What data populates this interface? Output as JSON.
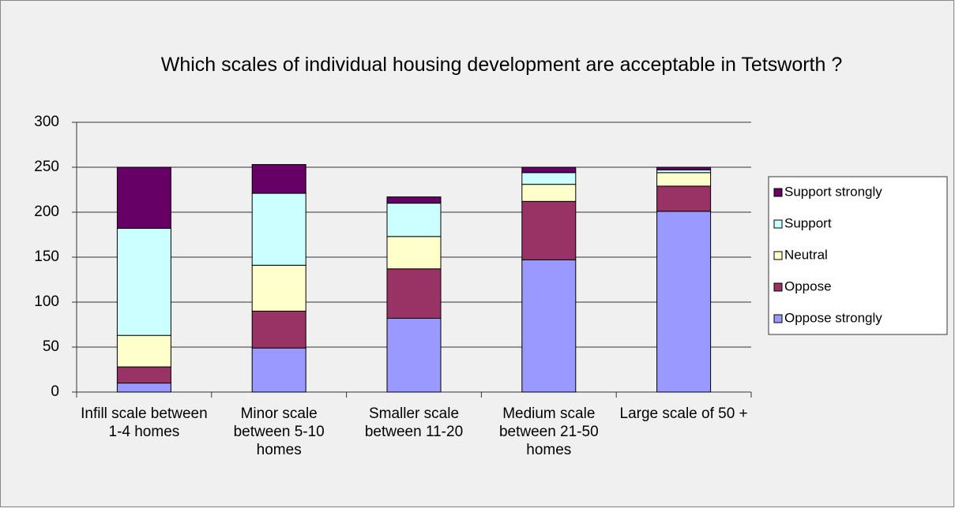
{
  "chart_data": {
    "type": "stacked_bar",
    "title": "Which scales of individual housing development are acceptable in Tetsworth ?",
    "categories": [
      "Infill scale between 1-4 homes",
      "Minor scale between 5-10 homes",
      "Smaller scale between 11-20",
      "Medium scale between 21-50 homes",
      "Large scale of 50 +"
    ],
    "series": [
      {
        "name": "Oppose strongly",
        "color": "#9999ff",
        "values": [
          10,
          49,
          82,
          147,
          201
        ]
      },
      {
        "name": "Oppose",
        "color": "#993366",
        "values": [
          18,
          41,
          55,
          65,
          28
        ]
      },
      {
        "name": "Neutral",
        "color": "#ffffcc",
        "values": [
          35,
          51,
          36,
          19,
          15
        ]
      },
      {
        "name": "Support",
        "color": "#ccffff",
        "values": [
          119,
          80,
          37,
          13,
          3
        ]
      },
      {
        "name": "Support strongly",
        "color": "#660066",
        "values": [
          68,
          32,
          7,
          6,
          3
        ]
      }
    ],
    "ylim": [
      0,
      300
    ],
    "yticks": [
      0,
      50,
      100,
      150,
      200,
      250,
      300
    ],
    "grid": true,
    "legend": "right"
  }
}
